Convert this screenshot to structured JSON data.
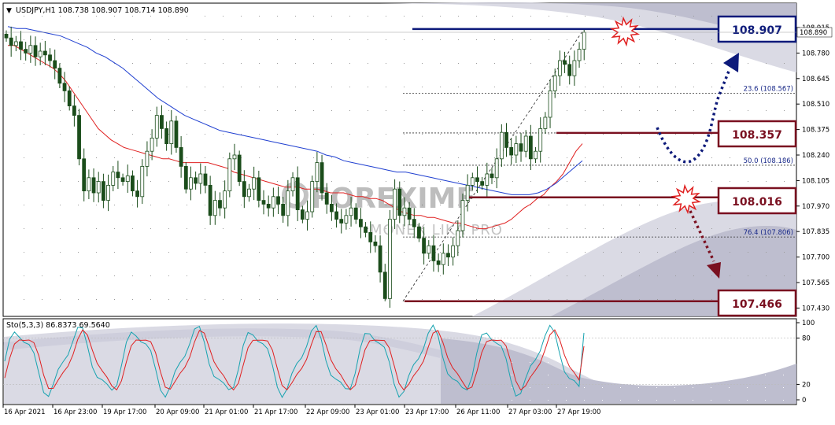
{
  "header": {
    "symbol_menu": "▼",
    "title": "USDJPY,H1  108.738 108.907 108.714 108.890"
  },
  "watermark": {
    "brand": "FOREXIMF",
    "sub": "MONEX LIKA PRO"
  },
  "stoch_header": "Sto(5,3,3) 86.8373 69.5640",
  "colors": {
    "blue_level": "#0d1a7a",
    "red_level": "#7a1020",
    "ma_red": "#e02020",
    "ma_blue": "#1f3fd0",
    "stoch_main": "#17a3b0",
    "stoch_signal": "#e02020",
    "candle_up": "#1b4d1b",
    "candle_down": "#1b4d1b"
  },
  "chart_data": {
    "type": "candlestick",
    "symbol": "USDJPY",
    "timeframe": "H1",
    "ohlc_current": {
      "open": 108.738,
      "high": 108.907,
      "low": 108.714,
      "close": 108.89
    },
    "price_axis": {
      "ylim": [
        107.43,
        108.93
      ],
      "ticks": [
        108.915,
        108.78,
        108.645,
        108.51,
        108.375,
        108.24,
        108.105,
        107.97,
        107.835,
        107.7,
        107.565,
        107.43
      ],
      "current_price": "108.890"
    },
    "time_axis": {
      "ticks": [
        "16 Apr 2021",
        "16 Apr 23:00",
        "19 Apr 17:00",
        "20 Apr 09:00",
        "21 Apr 01:00",
        "21 Apr 17:00",
        "22 Apr 09:00",
        "23 Apr 01:00",
        "23 Apr 17:00",
        "26 Apr 11:00",
        "27 Apr 03:00",
        "27 Apr 19:00"
      ]
    },
    "key_levels": [
      {
        "label": "108.907",
        "value": 108.907,
        "color": "blue"
      },
      {
        "label": "108.357",
        "value": 108.357,
        "color": "red"
      },
      {
        "label": "108.016",
        "value": 108.016,
        "color": "red"
      },
      {
        "label": "107.466",
        "value": 107.466,
        "color": "red"
      }
    ],
    "fibonacci": [
      {
        "label": "23.6 (108.567)",
        "value": 108.567
      },
      {
        "label": "50.0 (108.186)",
        "value": 108.186
      },
      {
        "label": "76.4 (107.806)",
        "value": 107.806
      }
    ],
    "closes": [
      108.86,
      108.82,
      108.84,
      108.8,
      108.78,
      108.82,
      108.76,
      108.79,
      108.77,
      108.74,
      108.7,
      108.62,
      108.58,
      108.5,
      108.45,
      108.22,
      108.05,
      108.12,
      108.04,
      108.1,
      108.0,
      108.08,
      108.15,
      108.12,
      108.1,
      108.13,
      108.05,
      108.02,
      108.18,
      108.26,
      108.33,
      108.45,
      108.38,
      108.3,
      108.42,
      108.28,
      108.18,
      108.06,
      108.12,
      108.09,
      108.14,
      108.08,
      107.92,
      108.0,
      107.96,
      108.05,
      108.22,
      108.24,
      108.1,
      108.02,
      108.06,
      108.12,
      108.0,
      107.98,
      107.96,
      108.02,
      107.98,
      107.92,
      108.05,
      108.12,
      107.95,
      107.9,
      107.94,
      108.1,
      108.2,
      108.04,
      107.98,
      107.94,
      107.9,
      107.88,
      107.92,
      107.96,
      107.9,
      107.86,
      107.83,
      107.78,
      107.76,
      107.62,
      107.48,
      107.9,
      108.06,
      107.92,
      107.96,
      107.9,
      107.86,
      107.8,
      107.72,
      107.76,
      107.68,
      107.66,
      107.72,
      107.7,
      107.76,
      107.84,
      108.0,
      108.08,
      108.12,
      108.1,
      108.08,
      108.14,
      108.12,
      108.22,
      108.36,
      108.28,
      108.24,
      108.3,
      108.26,
      108.34,
      108.22,
      108.26,
      108.38,
      108.44,
      108.58,
      108.66,
      108.74,
      108.72,
      108.66,
      108.74,
      108.8,
      108.89
    ],
    "ma_fast": {
      "name": "",
      "values": [
        108.82,
        108.82,
        108.8,
        108.78,
        108.76,
        108.74,
        108.72,
        108.7,
        108.67,
        108.63,
        108.58,
        108.53,
        108.48,
        108.43,
        108.38,
        108.35,
        108.32,
        108.3,
        108.28,
        108.27,
        108.26,
        108.25,
        108.24,
        108.23,
        108.22,
        108.22,
        108.21,
        108.2,
        108.2,
        108.2,
        108.2,
        108.2,
        108.19,
        108.18,
        108.17,
        108.15,
        108.14,
        108.13,
        108.12,
        108.11,
        108.1,
        108.09,
        108.08,
        108.07,
        108.07,
        108.07,
        108.06,
        108.06,
        108.06,
        108.05,
        108.04,
        108.04,
        108.04,
        108.03,
        108.02,
        108.02,
        108.01,
        108.01,
        108.0,
        107.98,
        107.96,
        107.94,
        107.93,
        107.92,
        107.92,
        107.91,
        107.91,
        107.9,
        107.89,
        107.88,
        107.88,
        107.87,
        107.86,
        107.85,
        107.85,
        107.86,
        107.87,
        107.88,
        107.9,
        107.93,
        107.96,
        107.98,
        108.01,
        108.03,
        108.07,
        108.1,
        108.14,
        108.2,
        108.26,
        108.3
      ]
    },
    "ma_slow": {
      "name": "",
      "values": [
        108.92,
        108.91,
        108.91,
        108.9,
        108.89,
        108.88,
        108.87,
        108.85,
        108.83,
        108.81,
        108.78,
        108.76,
        108.73,
        108.7,
        108.66,
        108.62,
        108.58,
        108.54,
        108.51,
        108.48,
        108.45,
        108.43,
        108.41,
        108.39,
        108.37,
        108.36,
        108.35,
        108.34,
        108.33,
        108.32,
        108.31,
        108.3,
        108.29,
        108.28,
        108.27,
        108.26,
        108.24,
        108.23,
        108.21,
        108.2,
        108.19,
        108.18,
        108.17,
        108.16,
        108.15,
        108.15,
        108.14,
        108.13,
        108.12,
        108.11,
        108.1,
        108.09,
        108.08,
        108.07,
        108.06,
        108.05,
        108.04,
        108.03,
        108.03,
        108.03,
        108.04,
        108.06,
        108.09,
        108.13,
        108.17,
        108.21
      ]
    },
    "stochastic": {
      "label": "Sto(5,3,3)",
      "main_value": 86.8373,
      "signal_value": 69.564,
      "ylim": [
        0,
        100
      ],
      "ticks": [
        100,
        80,
        20,
        0
      ],
      "levels": [
        80,
        20
      ]
    }
  }
}
